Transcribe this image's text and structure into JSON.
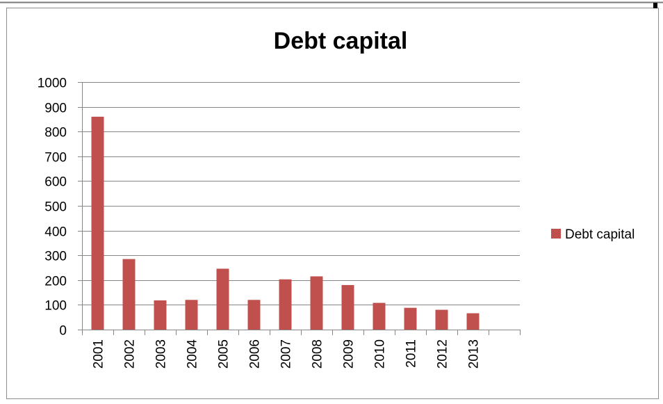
{
  "chart_data": {
    "type": "bar",
    "title": "Debt capital",
    "xlabel": "",
    "ylabel": "",
    "categories": [
      "2001",
      "2002",
      "2003",
      "2004",
      "2005",
      "2006",
      "2007",
      "2008",
      "2009",
      "2010",
      "2011",
      "2012",
      "2013",
      ""
    ],
    "series": [
      {
        "name": "Debt capital",
        "color": "#c0504d",
        "values": [
          860,
          285,
          118,
          120,
          246,
          120,
          203,
          215,
          180,
          108,
          88,
          80,
          66,
          null
        ]
      }
    ],
    "ylim": [
      0,
      1000
    ],
    "yticks": [
      "0",
      "100",
      "200",
      "300",
      "400",
      "500",
      "600",
      "700",
      "800",
      "900",
      "1000"
    ],
    "grid": true,
    "legend_position": "right"
  }
}
